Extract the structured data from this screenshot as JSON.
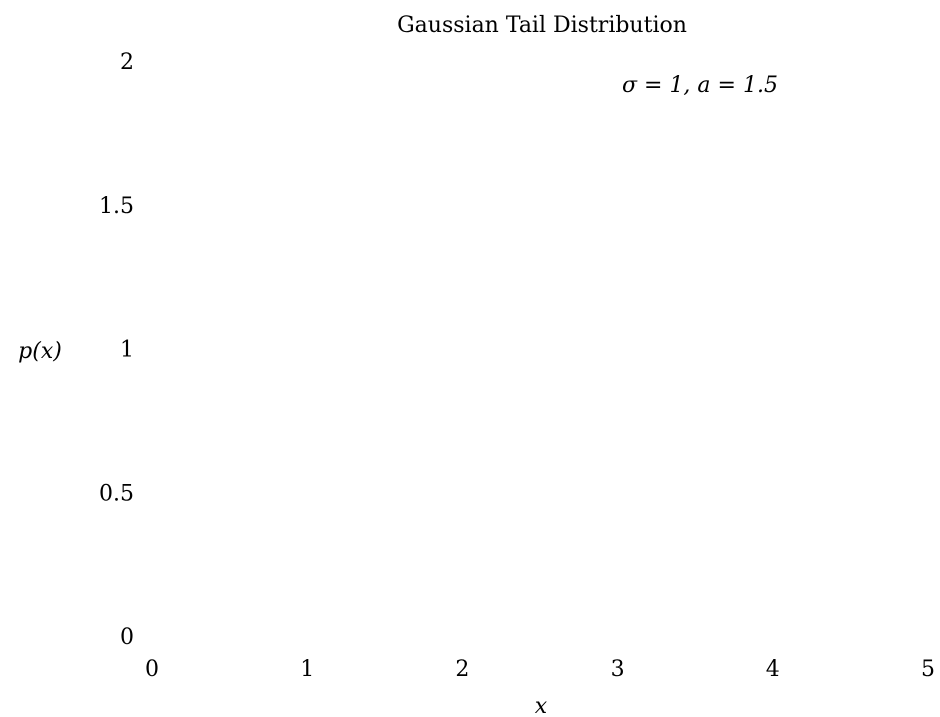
{
  "chart_data": {
    "type": "line",
    "title": "Gaussian Tail Distribution",
    "xlabel": "x",
    "ylabel": "p(x)",
    "xlim": [
      0,
      5
    ],
    "ylim": [
      0,
      2
    ],
    "x_ticks": [
      0,
      1,
      2,
      3,
      4,
      5
    ],
    "x_tick_labels": [
      "0",
      "1",
      "2",
      "3",
      "4",
      "5"
    ],
    "y_ticks": [
      0,
      0.5,
      1,
      1.5,
      2
    ],
    "y_tick_labels": [
      "0",
      "0.5",
      "1",
      "1.5",
      "2"
    ],
    "grid": false,
    "series": [
      {
        "name": "σ = 1, a = 1.5",
        "sigma": 1,
        "a": 1.5,
        "x": [],
        "values": []
      }
    ],
    "legend": {
      "position": "top-right",
      "entries": [
        "σ = 1, a = 1.5"
      ]
    }
  }
}
